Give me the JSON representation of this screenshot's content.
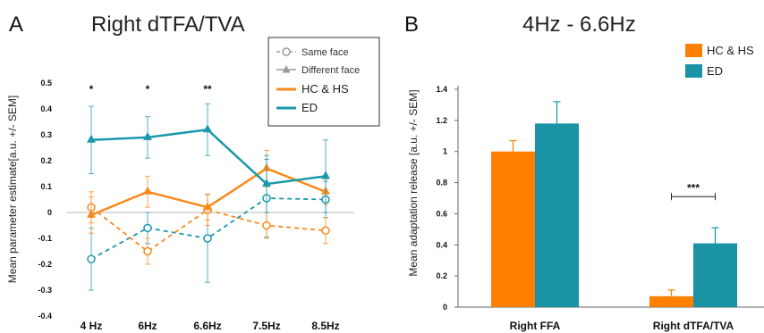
{
  "colors": {
    "hc": "#f98a1c",
    "ed": "#1b98ac",
    "grey": "#999999",
    "bar_hc": "#ff7f00",
    "bar_ed": "#1a93a6"
  },
  "panel_a": {
    "letter": "A",
    "title": "Right dTFA/TVA",
    "legend": {
      "same": "Same face",
      "different": "Different face",
      "hc": "HC & HS",
      "ed": "ED"
    }
  },
  "panel_b": {
    "letter": "B",
    "title": "4Hz - 6.6Hz",
    "legend": {
      "hc": "HC & HS",
      "ed": "ED"
    }
  },
  "chart_data": [
    {
      "type": "line",
      "title": "Right dTFA/TVA",
      "xlabel": "",
      "ylabel": "Mean parameter estimate[a.u. +/- SEM]",
      "categories": [
        "4 Hz",
        "6Hz",
        "6.6Hz",
        "7.5Hz",
        "8.5Hz"
      ],
      "ylim": [
        -0.4,
        0.5
      ],
      "yticks": [
        -0.4,
        -0.3,
        -0.2,
        -0.1,
        0,
        0.1,
        0.2,
        0.3,
        0.4,
        0.5
      ],
      "ytick_labels": [
        "-0.4",
        "-0.3",
        "-0.2",
        "-0.1",
        "0",
        "0.1",
        "0.2",
        "0.3",
        "0.4",
        "0.5"
      ],
      "significance": [
        "*",
        "*",
        "**",
        "",
        ""
      ],
      "series": [
        {
          "name": "ED",
          "group": "ED",
          "condition": "Different face",
          "values": [
            0.28,
            0.29,
            0.32,
            0.11,
            0.14
          ],
          "errors": [
            0.13,
            0.08,
            0.1,
            0.11,
            0.14
          ]
        },
        {
          "name": "HC & HS",
          "group": "HC & HS",
          "condition": "Different face",
          "values": [
            -0.01,
            0.08,
            0.02,
            0.17,
            0.08
          ],
          "errors": [
            0.07,
            0.06,
            0.05,
            0.07,
            0.05
          ]
        },
        {
          "name": "HC & HS",
          "group": "HC & HS",
          "condition": "Same face",
          "values": [
            0.02,
            -0.15,
            0.01,
            -0.05,
            -0.07
          ],
          "errors": [
            0.06,
            0.05,
            0.06,
            0.05,
            0.05
          ]
        },
        {
          "name": "ED",
          "group": "ED",
          "condition": "Same face",
          "values": [
            -0.18,
            -0.06,
            -0.1,
            0.055,
            0.05
          ],
          "errors": [
            0.12,
            0.06,
            0.17,
            0.15,
            0.07
          ]
        }
      ]
    },
    {
      "type": "bar",
      "title": "4Hz - 6.6Hz",
      "xlabel": "",
      "ylabel": "Mean adaptation release [a.u. +/- SEM]",
      "categories": [
        "Right FFA",
        "Right dTFA/TVA"
      ],
      "ylim": [
        0,
        1.4
      ],
      "yticks": [
        0,
        0.2,
        0.4,
        0.6,
        0.8,
        1,
        1.2,
        1.4
      ],
      "ytick_labels": [
        "0",
        "0.2",
        "0.4",
        "0.6",
        "0.8",
        "1",
        "1.2",
        "1.4"
      ],
      "series": [
        {
          "name": "HC & HS",
          "values": [
            1.0,
            0.07
          ],
          "errors": [
            0.07,
            0.04
          ]
        },
        {
          "name": "ED",
          "values": [
            1.18,
            0.41
          ],
          "errors": [
            0.14,
            0.1
          ]
        }
      ],
      "annotation": "***"
    }
  ]
}
